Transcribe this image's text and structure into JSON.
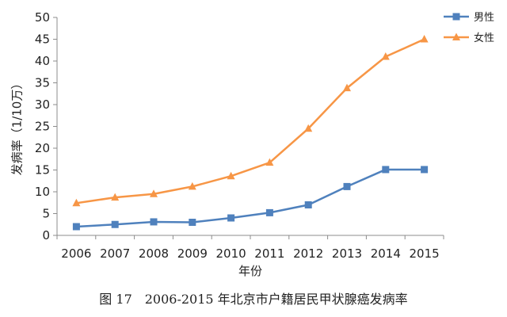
{
  "chart_data": {
    "type": "line",
    "x": [
      2006,
      2007,
      2008,
      2009,
      2010,
      2011,
      2012,
      2013,
      2014,
      2015
    ],
    "categories": [
      "2006",
      "2007",
      "2008",
      "2009",
      "2010",
      "2011",
      "2012",
      "2013",
      "2014",
      "2015"
    ],
    "series": [
      {
        "name": "男性",
        "color": "#4f81bd",
        "marker": "square",
        "values": [
          2.0,
          2.5,
          3.1,
          3.0,
          4.0,
          5.2,
          7.0,
          11.2,
          15.1,
          15.1
        ]
      },
      {
        "name": "女性",
        "color": "#f79646",
        "marker": "triangle",
        "values": [
          7.4,
          8.7,
          9.5,
          11.2,
          13.6,
          16.7,
          24.5,
          33.8,
          41.0,
          45.0
        ]
      }
    ],
    "xlabel": "年份",
    "ylabel": "发病率（1/10万）",
    "ylim": [
      0,
      50
    ],
    "yticks": [
      0,
      5,
      10,
      15,
      20,
      25,
      30,
      35,
      40,
      45,
      50
    ],
    "grid": false,
    "legend": "top-right"
  },
  "caption": "图 17　2006-2015 年北京市户籍居民甲状腺癌发病率"
}
